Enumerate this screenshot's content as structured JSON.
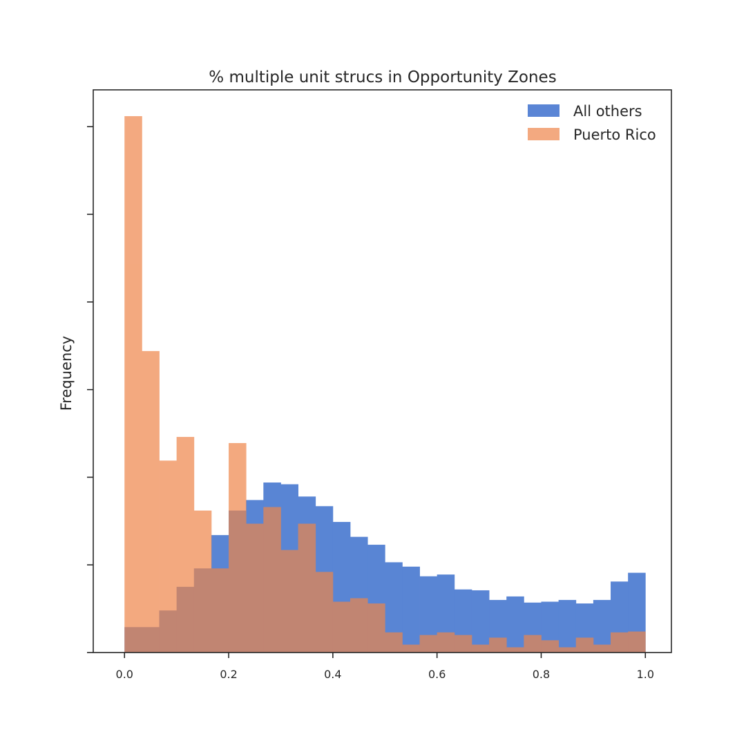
{
  "chart_data": {
    "type": "bar",
    "subtype": "overlapping-histogram",
    "title": "% multiple unit strucs in Opportunity Zones",
    "xlabel": "",
    "ylabel": "Frequency",
    "xlim": [
      -0.06,
      1.05
    ],
    "ylim": [
      0,
      6.42
    ],
    "y_tick_labels_shown": false,
    "y_ticks": [
      0,
      1,
      2,
      3,
      4,
      5,
      6
    ],
    "x_ticks": [
      0.0,
      0.2,
      0.4,
      0.6,
      0.8,
      1.0
    ],
    "x_tick_labels": [
      "0.0",
      "0.2",
      "0.4",
      "0.6",
      "0.8",
      "1.0"
    ],
    "bins": {
      "start": 0.0,
      "end": 1.0,
      "count": 30
    },
    "legend": {
      "position": "top-right"
    },
    "grid": false,
    "series": [
      {
        "name": "All others",
        "color": "#4878d0",
        "opacity": 0.9,
        "values": [
          0.29,
          0.29,
          0.48,
          0.75,
          0.96,
          1.34,
          1.62,
          1.74,
          1.94,
          1.92,
          1.78,
          1.67,
          1.49,
          1.32,
          1.23,
          1.03,
          0.98,
          0.87,
          0.89,
          0.72,
          0.71,
          0.6,
          0.64,
          0.57,
          0.58,
          0.6,
          0.56,
          0.6,
          0.81,
          0.91
        ]
      },
      {
        "name": "Puerto Rico",
        "color": "#ee854a",
        "opacity": 0.7,
        "values": [
          6.12,
          3.44,
          2.19,
          2.46,
          1.62,
          0.96,
          2.39,
          1.47,
          1.66,
          1.17,
          1.47,
          0.92,
          0.58,
          0.62,
          0.56,
          0.23,
          0.09,
          0.2,
          0.23,
          0.2,
          0.09,
          0.17,
          0.06,
          0.2,
          0.14,
          0.06,
          0.17,
          0.09,
          0.23,
          0.24
        ]
      }
    ]
  }
}
